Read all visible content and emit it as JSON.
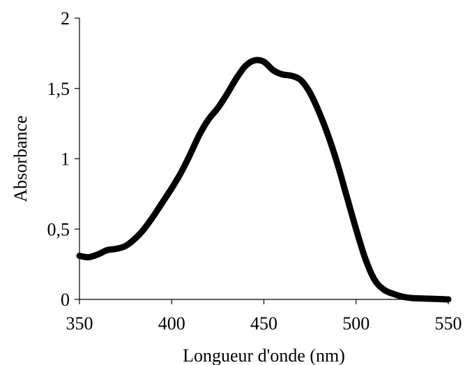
{
  "chart_data": {
    "type": "line",
    "title": "",
    "xlabel": "Longueur d'onde (nm)",
    "ylabel": "Absorbance",
    "xlim": [
      350,
      550
    ],
    "ylim": [
      0,
      2
    ],
    "x_ticks": [
      350,
      400,
      450,
      500,
      550
    ],
    "x_tick_labels": [
      "350",
      "400",
      "450",
      "500",
      "550"
    ],
    "y_ticks": [
      0,
      0.5,
      1,
      1.5,
      2
    ],
    "y_tick_labels": [
      "0",
      "0,5",
      "1",
      "1,5",
      "2"
    ],
    "grid": false,
    "legend": "none",
    "series": [
      {
        "color": "#000000",
        "x": [
          350,
          355,
          360,
          365,
          370,
          375,
          380,
          385,
          390,
          395,
          400,
          405,
          410,
          415,
          420,
          425,
          430,
          435,
          440,
          445,
          450,
          455,
          460,
          465,
          470,
          475,
          480,
          485,
          490,
          495,
          500,
          505,
          510,
          515,
          520,
          525,
          530,
          540,
          550
        ],
        "y": [
          0.31,
          0.3,
          0.32,
          0.35,
          0.36,
          0.38,
          0.43,
          0.5,
          0.59,
          0.69,
          0.79,
          0.9,
          1.03,
          1.17,
          1.28,
          1.36,
          1.46,
          1.57,
          1.66,
          1.7,
          1.69,
          1.63,
          1.6,
          1.59,
          1.56,
          1.47,
          1.33,
          1.16,
          0.96,
          0.73,
          0.5,
          0.29,
          0.14,
          0.07,
          0.04,
          0.02,
          0.01,
          0.005,
          0.0
        ]
      }
    ]
  }
}
